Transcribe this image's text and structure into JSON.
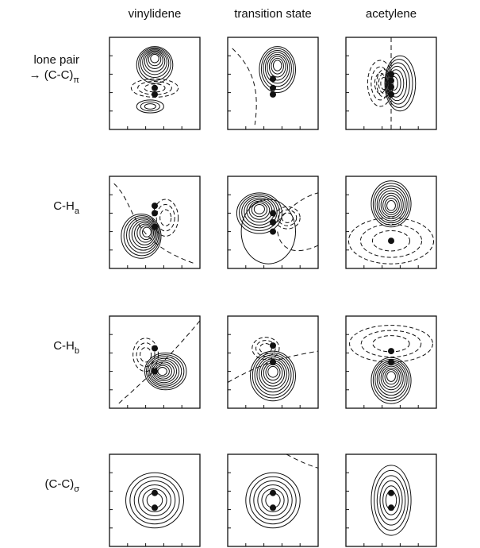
{
  "columns": [
    "vinylidene",
    "transition state",
    "acetylene"
  ],
  "rows": [
    {
      "label": [
        "lone pair",
        "→ (C-C)"
      ],
      "subscript": "π"
    },
    {
      "label": [
        "C-H"
      ],
      "subscript": "a"
    },
    {
      "label": [
        "C-H"
      ],
      "subscript": "b"
    },
    {
      "label": [
        "(C-C)"
      ],
      "subscript": "σ"
    }
  ]
}
